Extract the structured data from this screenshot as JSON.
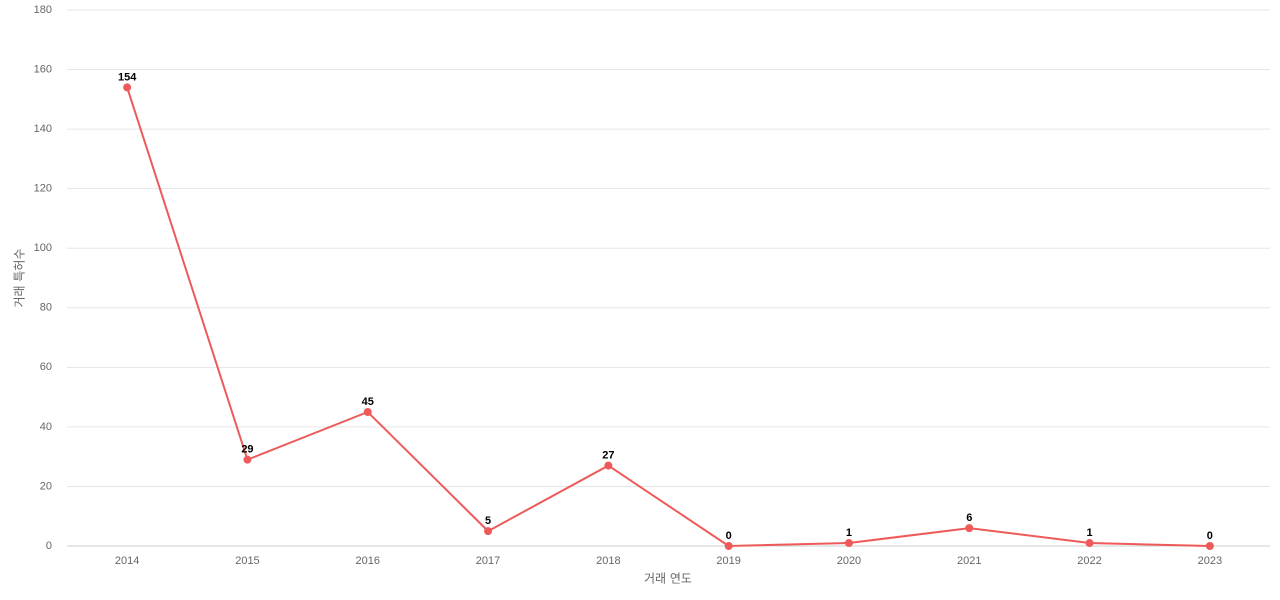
{
  "chart_data": {
    "type": "line",
    "x_label": "거래 연도",
    "y_label": "거래 특허수",
    "categories": [
      "2014",
      "2015",
      "2016",
      "2017",
      "2018",
      "2019",
      "2020",
      "2021",
      "2022",
      "2023"
    ],
    "series": [
      {
        "name": "거래 특허수",
        "color": "#ee5a5a",
        "values": [
          154,
          29,
          45,
          5,
          27,
          0,
          1,
          6,
          1,
          0
        ]
      }
    ],
    "ylim": [
      0,
      180
    ],
    "yticks": [
      0,
      20,
      40,
      60,
      80,
      100,
      120,
      140,
      160,
      180
    ],
    "grid": true
  }
}
